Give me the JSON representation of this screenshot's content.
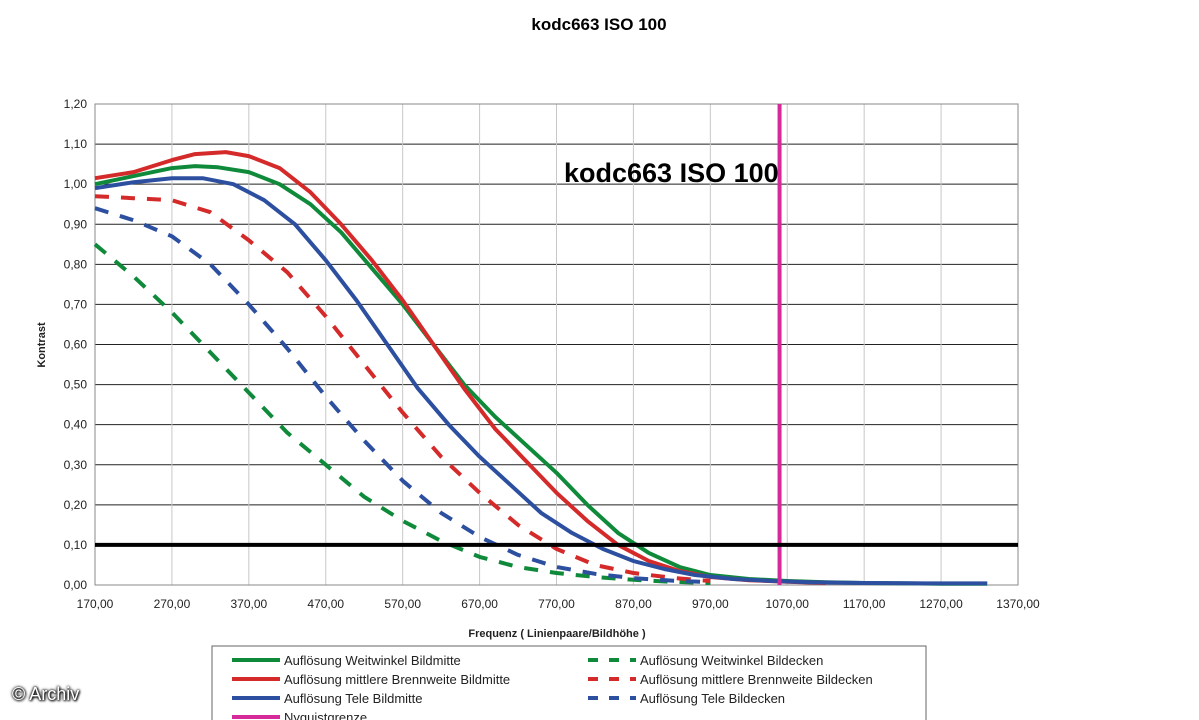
{
  "chart_data": {
    "type": "line",
    "title": "kodc663   ISO 100",
    "inner_title": "kodc663   ISO 100",
    "xlabel": "Frequenz ( Linienpaare/Bildhöhe )",
    "ylabel": "Kontrast",
    "xlim": [
      170,
      1370
    ],
    "ylim": [
      0,
      1.2
    ],
    "x_ticks": [
      "170,00",
      "270,00",
      "370,00",
      "470,00",
      "570,00",
      "670,00",
      "770,00",
      "870,00",
      "970,00",
      "1070,00",
      "1170,00",
      "1270,00",
      "1370,00"
    ],
    "y_ticks": [
      "0,00",
      "0,10",
      "0,20",
      "0,30",
      "0,40",
      "0,50",
      "0,60",
      "0,70",
      "0,80",
      "0,90",
      "1,00",
      "1,10",
      "1,20"
    ],
    "grid": true,
    "reference_line_y": 0.1,
    "series": [
      {
        "name": "Auflösung Weitwinkel Bildmitte",
        "color": "#0f8a3a",
        "dash": "solid",
        "x": [
          170,
          220,
          270,
          300,
          330,
          370,
          410,
          450,
          490,
          530,
          570,
          610,
          650,
          690,
          730,
          770,
          810,
          850,
          890,
          930,
          970,
          1020,
          1070,
          1120,
          1170,
          1230,
          1270,
          1330
        ],
        "y": [
          1.0,
          1.02,
          1.04,
          1.045,
          1.042,
          1.03,
          1.0,
          0.95,
          0.88,
          0.79,
          0.7,
          0.6,
          0.5,
          0.42,
          0.35,
          0.28,
          0.2,
          0.13,
          0.08,
          0.045,
          0.025,
          0.015,
          0.01,
          0.007,
          0.005,
          0.004,
          0.003,
          0.003
        ]
      },
      {
        "name": "Auflösung mittlere Brennweite Bildmitte",
        "color": "#d42a2a",
        "dash": "solid",
        "x": [
          170,
          220,
          270,
          300,
          340,
          370,
          410,
          450,
          490,
          530,
          570,
          610,
          650,
          690,
          730,
          770,
          810,
          850,
          890,
          930,
          970,
          1020,
          1070,
          1120
        ],
        "y": [
          1.015,
          1.03,
          1.06,
          1.075,
          1.08,
          1.07,
          1.04,
          0.98,
          0.9,
          0.81,
          0.71,
          0.6,
          0.49,
          0.39,
          0.31,
          0.23,
          0.16,
          0.1,
          0.06,
          0.035,
          0.02,
          0.012,
          0.008,
          0.005
        ]
      },
      {
        "name": "Auflösung Tele Bildmitte",
        "color": "#2d4fa0",
        "dash": "solid",
        "x": [
          170,
          220,
          270,
          310,
          350,
          390,
          430,
          470,
          510,
          550,
          590,
          630,
          670,
          710,
          750,
          790,
          830,
          870,
          910,
          950,
          1000,
          1050,
          1100,
          1170,
          1250,
          1330
        ],
        "y": [
          0.99,
          1.005,
          1.015,
          1.015,
          1.0,
          0.96,
          0.9,
          0.81,
          0.71,
          0.6,
          0.49,
          0.4,
          0.32,
          0.25,
          0.18,
          0.13,
          0.09,
          0.06,
          0.04,
          0.025,
          0.015,
          0.01,
          0.007,
          0.005,
          0.004,
          0.004
        ]
      },
      {
        "name": "Auflösung Weitwinkel Bildecken",
        "color": "#0f8a3a",
        "dash": "dashed",
        "x": [
          170,
          220,
          270,
          320,
          370,
          420,
          470,
          520,
          570,
          620,
          670,
          720,
          770,
          820,
          870,
          920,
          970
        ],
        "y": [
          0.85,
          0.77,
          0.68,
          0.58,
          0.48,
          0.38,
          0.3,
          0.22,
          0.16,
          0.11,
          0.07,
          0.045,
          0.03,
          0.02,
          0.013,
          0.008,
          0.005
        ]
      },
      {
        "name": "Auflösung mittlere Brennweite Bildecken",
        "color": "#d42a2a",
        "dash": "dashed",
        "x": [
          170,
          220,
          270,
          320,
          370,
          420,
          470,
          520,
          570,
          620,
          670,
          720,
          770,
          820,
          870,
          920,
          970
        ],
        "y": [
          0.97,
          0.965,
          0.96,
          0.93,
          0.86,
          0.78,
          0.67,
          0.55,
          0.43,
          0.32,
          0.23,
          0.15,
          0.09,
          0.05,
          0.03,
          0.018,
          0.01
        ]
      },
      {
        "name": "Auflösung Tele Bildecken",
        "color": "#2d4fa0",
        "dash": "dashed",
        "x": [
          170,
          220,
          270,
          320,
          370,
          420,
          470,
          520,
          570,
          620,
          670,
          720,
          770,
          820,
          870,
          920,
          970
        ],
        "y": [
          0.94,
          0.91,
          0.87,
          0.8,
          0.7,
          0.59,
          0.47,
          0.36,
          0.26,
          0.18,
          0.12,
          0.075,
          0.045,
          0.028,
          0.017,
          0.011,
          0.007
        ]
      },
      {
        "name": "Nyquistgrenze",
        "color": "#d62a9a",
        "dash": "solid",
        "vertical_x": 1060
      }
    ],
    "legend": {
      "placement": "bottom",
      "entries": [
        {
          "label": "Auflösung Weitwinkel Bildmitte",
          "color": "#0f8a3a",
          "dash": "solid"
        },
        {
          "label": "Auflösung Weitwinkel Bildecken",
          "color": "#0f8a3a",
          "dash": "dashed"
        },
        {
          "label": "Auflösung mittlere Brennweite Bildmitte",
          "color": "#d42a2a",
          "dash": "solid"
        },
        {
          "label": "Auflösung mittlere Brennweite Bildecken",
          "color": "#d42a2a",
          "dash": "dashed"
        },
        {
          "label": "Auflösung Tele Bildmitte",
          "color": "#2d4fa0",
          "dash": "solid"
        },
        {
          "label": "Auflösung Tele Bildecken",
          "color": "#2d4fa0",
          "dash": "dashed"
        },
        {
          "label": "Nyquistgrenze",
          "color": "#d62a9a",
          "dash": "solid"
        }
      ]
    }
  },
  "credit": "© Archiv"
}
